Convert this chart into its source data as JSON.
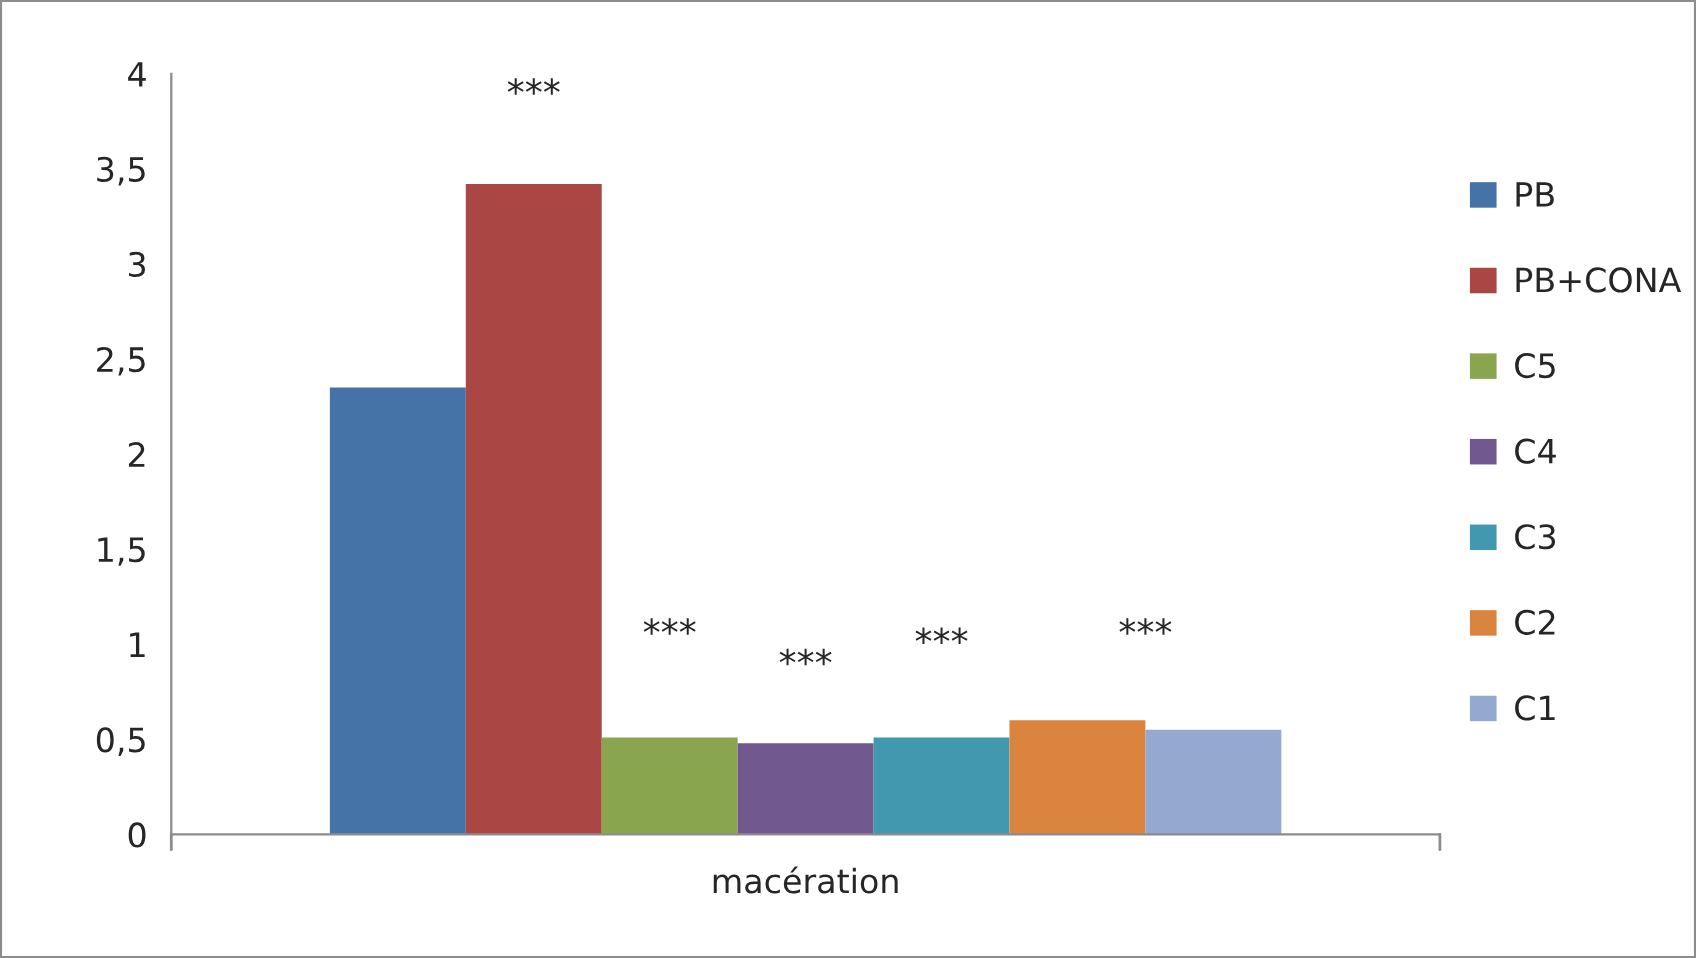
{
  "chart_data": {
    "type": "bar",
    "categories": [
      "macération"
    ],
    "series": [
      {
        "name": "PB",
        "color": "#4572a7",
        "values": [
          2.35
        ]
      },
      {
        "name": "PB+CONA",
        "color": "#aa4643",
        "values": [
          3.42
        ]
      },
      {
        "name": "C5",
        "color": "#89a54e",
        "values": [
          0.51
        ]
      },
      {
        "name": "C4",
        "color": "#71588f",
        "values": [
          0.48
        ]
      },
      {
        "name": "C3",
        "color": "#4198af",
        "values": [
          0.51
        ]
      },
      {
        "name": "C2",
        "color": "#db843d",
        "values": [
          0.6
        ]
      },
      {
        "name": "C1",
        "color": "#93a9cf",
        "values": [
          0.55
        ]
      }
    ],
    "ylim": [
      0,
      4
    ],
    "yticks": [
      0,
      {
        "value": 0.5,
        "label": "0,5"
      },
      1,
      {
        "value": 1.5,
        "label": "1,5"
      },
      2,
      {
        "value": 2.5,
        "label": "2,5"
      },
      3,
      {
        "value": 3.5,
        "label": "3,5"
      },
      4
    ],
    "annotations": [
      "***",
      "***",
      "***",
      "***",
      "***"
    ],
    "grid": false,
    "legend": "right"
  }
}
